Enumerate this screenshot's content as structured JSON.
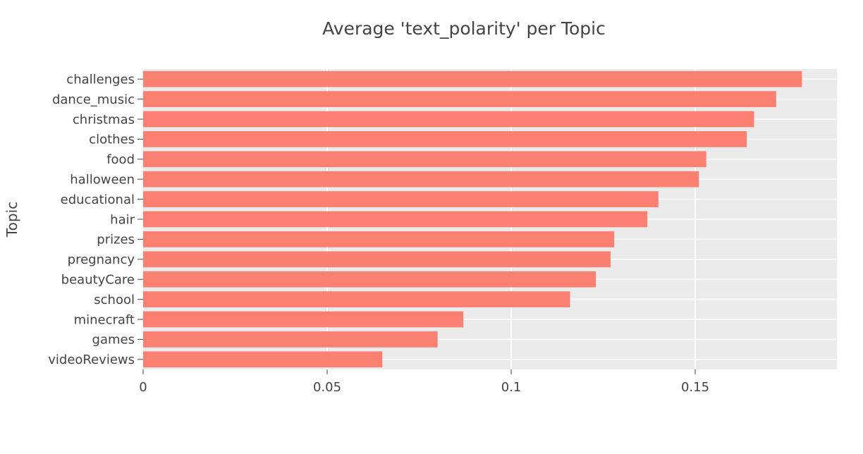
{
  "chart_data": {
    "type": "bar",
    "orientation": "horizontal",
    "title": "Average 'text_polarity' per Topic",
    "xlabel": "",
    "ylabel": "Topic",
    "categories": [
      "challenges",
      "dance_music",
      "christmas",
      "clothes",
      "food",
      "halloween",
      "educational",
      "hair",
      "prizes",
      "pregnancy",
      "beautyCare",
      "school",
      "minecraft",
      "games",
      "videoReviews"
    ],
    "values": [
      0.179,
      0.172,
      0.166,
      0.164,
      0.153,
      0.151,
      0.14,
      0.137,
      0.128,
      0.127,
      0.123,
      0.116,
      0.087,
      0.08,
      0.065
    ],
    "xlim": [
      0,
      0.1885
    ],
    "xticks": [
      0,
      0.05,
      0.1,
      0.15
    ],
    "xtick_labels": [
      "0",
      "0.05",
      "0.1",
      "0.15"
    ],
    "grid": true,
    "colors": {
      "bar": "#FA8072",
      "plot_background": "#EBEBEB",
      "grid": "#FFFFFF",
      "text": "#444444"
    }
  }
}
